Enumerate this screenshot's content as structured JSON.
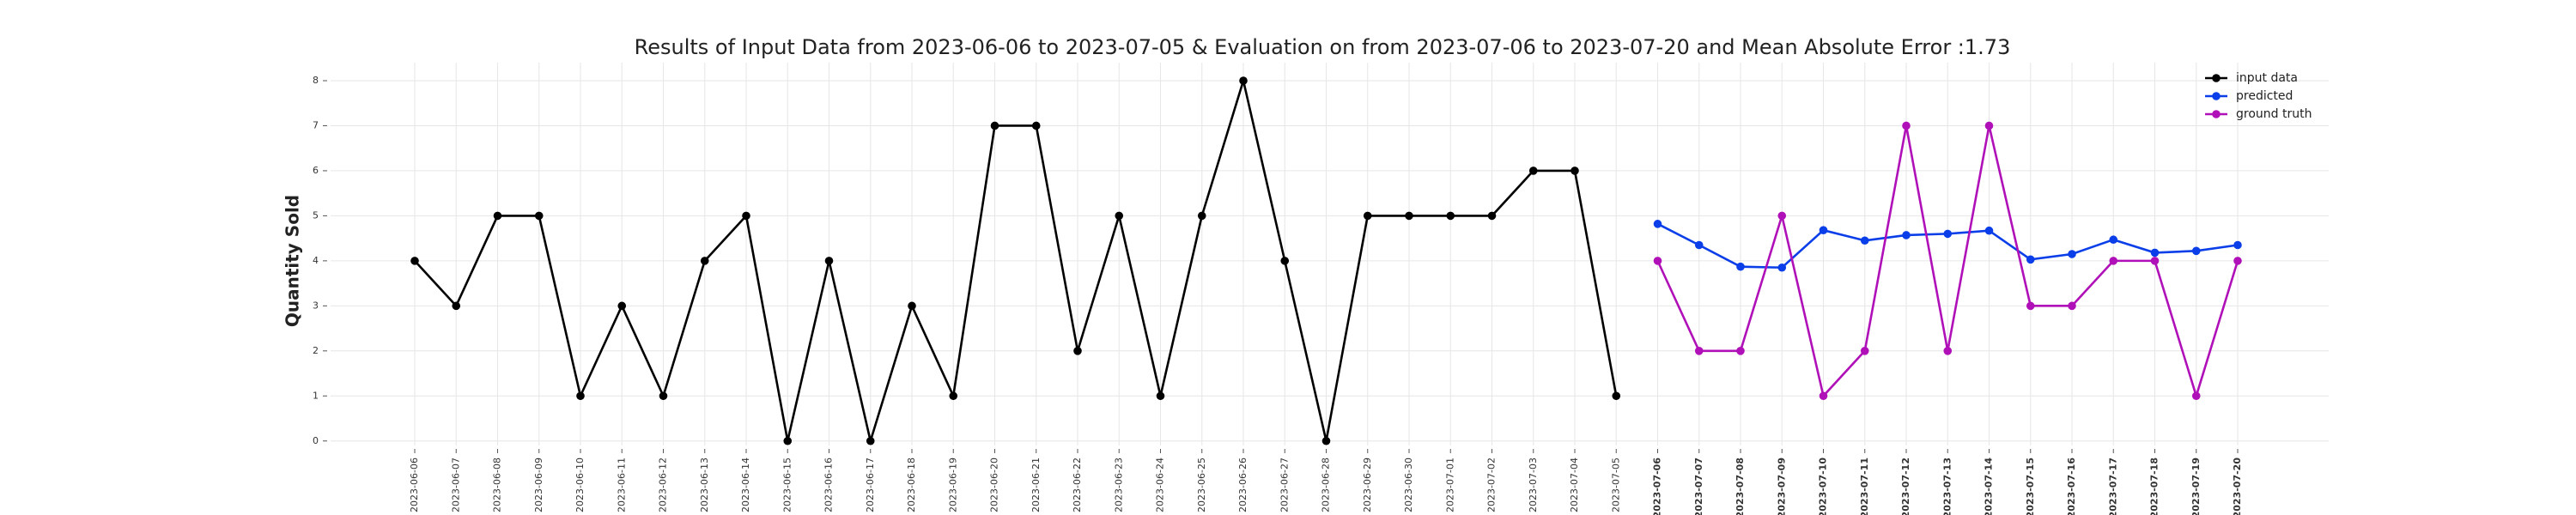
{
  "chart_data": {
    "type": "line",
    "title": "Results of Input Data from 2023-06-06 to 2023-07-05 & Evaluation on from 2023-07-06 to 2023-07-20 and Mean Absolute Error  :1.73",
    "y_label": "Quantity Sold",
    "x": [
      "2023-06-06",
      "2023-06-07",
      "2023-06-08",
      "2023-06-09",
      "2023-06-10",
      "2023-06-11",
      "2023-06-12",
      "2023-06-13",
      "2023-06-14",
      "2023-06-15",
      "2023-06-16",
      "2023-06-17",
      "2023-06-18",
      "2023-06-19",
      "2023-06-20",
      "2023-06-21",
      "2023-06-22",
      "2023-06-23",
      "2023-06-24",
      "2023-06-25",
      "2023-06-26",
      "2023-06-27",
      "2023-06-28",
      "2023-06-29",
      "2023-06-30",
      "2023-07-01",
      "2023-07-02",
      "2023-07-03",
      "2023-07-04",
      "2023-07-05",
      "2023-07-06",
      "2023-07-07",
      "2023-07-08",
      "2023-07-09",
      "2023-07-10",
      "2023-07-11",
      "2023-07-12",
      "2023-07-13",
      "2023-07-14",
      "2023-07-15",
      "2023-07-16",
      "2023-07-17",
      "2023-07-18",
      "2023-07-19",
      "2023-07-20"
    ],
    "series": [
      {
        "name": "input data",
        "color": "#000000",
        "values": [
          4,
          3,
          5,
          5,
          1,
          3,
          1,
          4,
          5,
          0,
          4,
          0,
          3,
          1,
          7,
          7,
          2,
          5,
          1,
          5,
          8,
          4,
          0,
          5,
          5,
          5,
          5,
          6,
          6,
          1,
          null,
          null,
          null,
          null,
          null,
          null,
          null,
          null,
          null,
          null,
          null,
          null,
          null,
          null,
          null
        ]
      },
      {
        "name": "predicted",
        "color": "#0a3ee8",
        "values": [
          null,
          null,
          null,
          null,
          null,
          null,
          null,
          null,
          null,
          null,
          null,
          null,
          null,
          null,
          null,
          null,
          null,
          null,
          null,
          null,
          null,
          null,
          null,
          null,
          null,
          null,
          null,
          null,
          null,
          null,
          4.82,
          4.35,
          3.87,
          3.85,
          4.68,
          4.45,
          4.57,
          4.6,
          4.67,
          4.03,
          4.15,
          4.47,
          4.18,
          4.22,
          4.35
        ]
      },
      {
        "name": "ground truth",
        "color": "#b010b8",
        "values": [
          null,
          null,
          null,
          null,
          null,
          null,
          null,
          null,
          null,
          null,
          null,
          null,
          null,
          null,
          null,
          null,
          null,
          null,
          null,
          null,
          null,
          null,
          null,
          null,
          null,
          null,
          null,
          null,
          null,
          null,
          4,
          2,
          2,
          5,
          1,
          2,
          7,
          2,
          7,
          3,
          3,
          4,
          4,
          1,
          4
        ]
      }
    ],
    "ylim": [
      -0.1,
      8.4
    ],
    "yticks": [
      0,
      1,
      2,
      3,
      4,
      5,
      6,
      7,
      8
    ],
    "grid": true,
    "legend": "upper right"
  }
}
